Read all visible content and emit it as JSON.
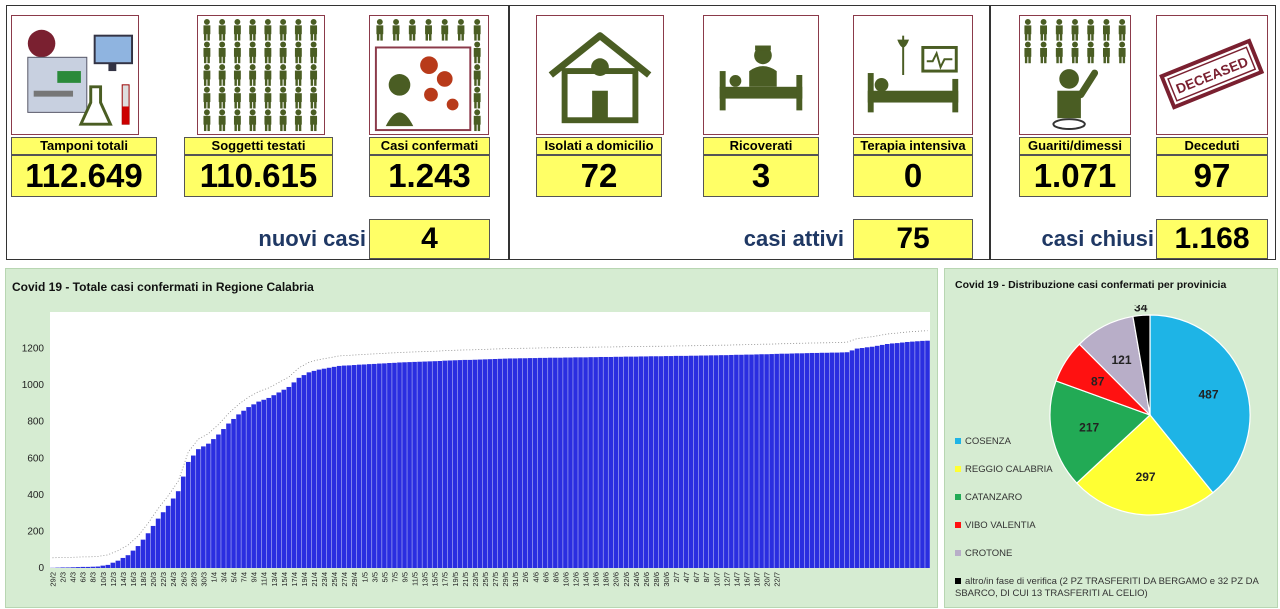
{
  "stats": [
    {
      "label": "Tamponi totali",
      "value": "112.649"
    },
    {
      "label": "Soggetti testati",
      "value": "110.615"
    },
    {
      "label": "Casi confermati",
      "value": "1.243"
    },
    {
      "label": "Isolati a domicilio",
      "value": "72"
    },
    {
      "label": "Ricoverati",
      "value": "3"
    },
    {
      "label": "Terapia intensiva",
      "value": "0"
    },
    {
      "label": "Guariti/dimessi",
      "value": "1.071"
    },
    {
      "label": "Deceduti",
      "value": "97"
    }
  ],
  "summary": {
    "nuovi_label": "nuovi casi",
    "nuovi_value": "4",
    "attivi_label": "casi attivi",
    "attivi_value": "75",
    "chiusi_label": "casi chiusi",
    "chiusi_value": "1.168"
  },
  "stamp_text": "DECEASED",
  "colors": {
    "bar": "#2a2ee0",
    "panel": "#d6ecd2",
    "label_bg": "#ffff66",
    "card_border": "#8b3a4a",
    "icon": "#4a5d23",
    "summary_text": "#1f3864"
  },
  "chart_data": [
    {
      "type": "bar",
      "title": "Covid 19 - Totale casi confermati in Regione Calabria",
      "xlabel": "",
      "ylabel": "",
      "ylim": [
        0,
        1400
      ],
      "yticks": [
        0,
        200,
        400,
        600,
        800,
        1000,
        1200
      ],
      "grid": false,
      "x_tick_labels": [
        "29/2",
        "2/3",
        "4/3",
        "6/3",
        "8/3",
        "10/3",
        "12/3",
        "14/3",
        "16/3",
        "18/3",
        "20/3",
        "22/3",
        "24/3",
        "26/3",
        "28/3",
        "30/3",
        "1/4",
        "3/4",
        "5/4",
        "7/4",
        "9/4",
        "11/4",
        "13/4",
        "15/4",
        "17/4",
        "19/4",
        "21/4",
        "23/4",
        "25/4",
        "27/4",
        "29/4",
        "1/5",
        "3/5",
        "5/5",
        "7/5",
        "9/5",
        "11/5",
        "13/5",
        "15/5",
        "17/5",
        "19/5",
        "21/5",
        "23/5",
        "25/5",
        "27/5",
        "29/5",
        "31/5",
        "2/6",
        "4/6",
        "6/6",
        "8/6",
        "10/6",
        "12/6",
        "14/6",
        "16/6",
        "18/6",
        "20/6",
        "22/6",
        "24/6",
        "26/6",
        "28/6",
        "30/6",
        "2/7",
        "4/7",
        "6/7",
        "8/7",
        "10/7",
        "12/7",
        "14/7",
        "16/7",
        "18/7",
        "20/7",
        "22/7"
      ],
      "anchors": [
        [
          0,
          1
        ],
        [
          9,
          8
        ],
        [
          11,
          17
        ],
        [
          13,
          40
        ],
        [
          15,
          70
        ],
        [
          17,
          120
        ],
        [
          19,
          190
        ],
        [
          21,
          270
        ],
        [
          23,
          340
        ],
        [
          25,
          420
        ],
        [
          27,
          580
        ],
        [
          29,
          650
        ],
        [
          31,
          680
        ],
        [
          33,
          730
        ],
        [
          35,
          790
        ],
        [
          37,
          840
        ],
        [
          39,
          880
        ],
        [
          41,
          910
        ],
        [
          43,
          930
        ],
        [
          45,
          960
        ],
        [
          47,
          990
        ],
        [
          49,
          1040
        ],
        [
          51,
          1070
        ],
        [
          53,
          1085
        ],
        [
          55,
          1095
        ],
        [
          57,
          1105
        ],
        [
          60,
          1110
        ],
        [
          65,
          1118
        ],
        [
          70,
          1125
        ],
        [
          75,
          1130
        ],
        [
          80,
          1136
        ],
        [
          85,
          1140
        ],
        [
          90,
          1145
        ],
        [
          100,
          1150
        ],
        [
          110,
          1154
        ],
        [
          120,
          1158
        ],
        [
          130,
          1162
        ],
        [
          140,
          1168
        ],
        [
          150,
          1175
        ],
        [
          156,
          1178
        ],
        [
          158,
          1180
        ],
        [
          160,
          1200
        ],
        [
          163,
          1210
        ],
        [
          166,
          1225
        ],
        [
          168,
          1230
        ],
        [
          170,
          1236
        ],
        [
          172,
          1240
        ],
        [
          174,
          1243
        ]
      ]
    },
    {
      "type": "pie",
      "title": "Covid 19 - Distribuzione casi confermati per provinicia",
      "slices": [
        {
          "label": "COSENZA",
          "value": 487,
          "color": "#1eb4e6"
        },
        {
          "label": "REGGIO CALABRIA",
          "value": 297,
          "color": "#ffff33"
        },
        {
          "label": "CATANZARO",
          "value": 217,
          "color": "#22aa55"
        },
        {
          "label": "VIBO VALENTIA",
          "value": 87,
          "color": "#ff1111"
        },
        {
          "label": "CROTONE",
          "value": 121,
          "color": "#b8aec8"
        },
        {
          "label": "altro/in fase di verifica (2 PZ TRASFERITI DA BERGAMO e 32 PZ DA SBARCO, DI CUI 13 TRASFERITI AL CELIO)",
          "value": 34,
          "color": "#000000"
        }
      ]
    }
  ]
}
